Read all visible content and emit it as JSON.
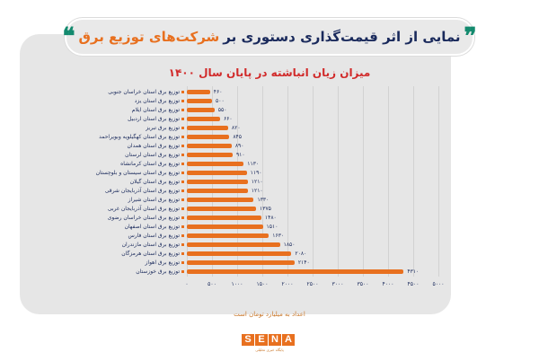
{
  "header": {
    "quote_open": "❞",
    "title_part1": "نمایی از اثر قیمت‌گذاری دستوری بر",
    "title_part2": "شرکت‌های توزیع برق",
    "quote_close": "❝"
  },
  "colors": {
    "bar": "#e8701f",
    "title_dark": "#1a2a5c",
    "title_accent": "#e8701f",
    "quote": "#138a6e",
    "subtitle": "#d12a2a",
    "panel": "#e6e6e6"
  },
  "chart_data": {
    "type": "bar",
    "orientation": "horizontal",
    "title": "میزان زیان انباشته در پایان سال ۱۴۰۰",
    "xlabel": "",
    "ylabel": "",
    "unit_note": "اعداد به میلیارد تومان است",
    "xlim": [
      0,
      5000
    ],
    "grid": true,
    "legend": "none",
    "x_ticks": [
      0,
      500,
      1000,
      1500,
      2000,
      2500,
      3000,
      3500,
      4000,
      4500,
      5000
    ],
    "x_tick_labels": [
      "۰",
      "۵۰۰",
      "۱۰۰۰",
      "۱۵۰۰",
      "۲۰۰۰",
      "۲۵۰۰",
      "۳۰۰۰",
      "۳۵۰۰",
      "۴۰۰۰",
      "۴۵۰۰",
      "۵۰۰۰"
    ],
    "categories": [
      "توزیع برق استان خراسان جنوبی",
      "توزیع برق استان یزد",
      "توزیع برق استان ایلام",
      "توزیع برق استان اردبیل",
      "توزیع برق تبریز",
      "توزیع برق استان کهگیلویه وبویراحمد",
      "توزیع برق استان همدان",
      "توزیع برق استان لرستان",
      "توزیع برق استان کرمانشاه",
      "توزیع برق استان سیستان و بلوچستان",
      "توزیع برق استان گیلان",
      "توزیع برق استان آذربایجان شرقی",
      "توزیع برق استان شیراز",
      "توزیع برق استان آذربایجان غربی",
      "توزیع برق استان خراسان رضوی",
      "توزیع برق استان اصفهان",
      "توزیع برق استان فارس",
      "توزیع برق استان مازندران",
      "توزیع برق استان هرمزگان",
      "توزیع برق اهواز",
      "توزیع برق خوزستان"
    ],
    "values": [
      460,
      500,
      550,
      660,
      820,
      845,
      890,
      910,
      1130,
      1190,
      1210,
      1210,
      1330,
      1375,
      1480,
      1510,
      1630,
      1850,
      2080,
      2140,
      4310
    ],
    "value_labels": [
      "۴۶۰",
      "۵۰۰",
      "۵۵۰",
      "۶۶۰",
      "۸۲۰",
      "۸۴۵",
      "۸۹۰",
      "۹۱۰",
      "۱۱۳۰",
      "۱۱۹۰",
      "۱۲۱۰",
      "۱۲۱۰",
      "۱۳۳۰",
      "۱۳۷۵",
      "۱۴۸۰",
      "۱۵۱۰",
      "۱۶۳۰",
      "۱۸۵۰",
      "۲۰۸۰",
      "۲۱۴۰",
      "۴۳۱۰"
    ]
  },
  "footer": {
    "logo_letters": [
      "S",
      "E",
      "N",
      "A"
    ],
    "logo_tagline": "پایگاه خبری تحلیلی"
  }
}
